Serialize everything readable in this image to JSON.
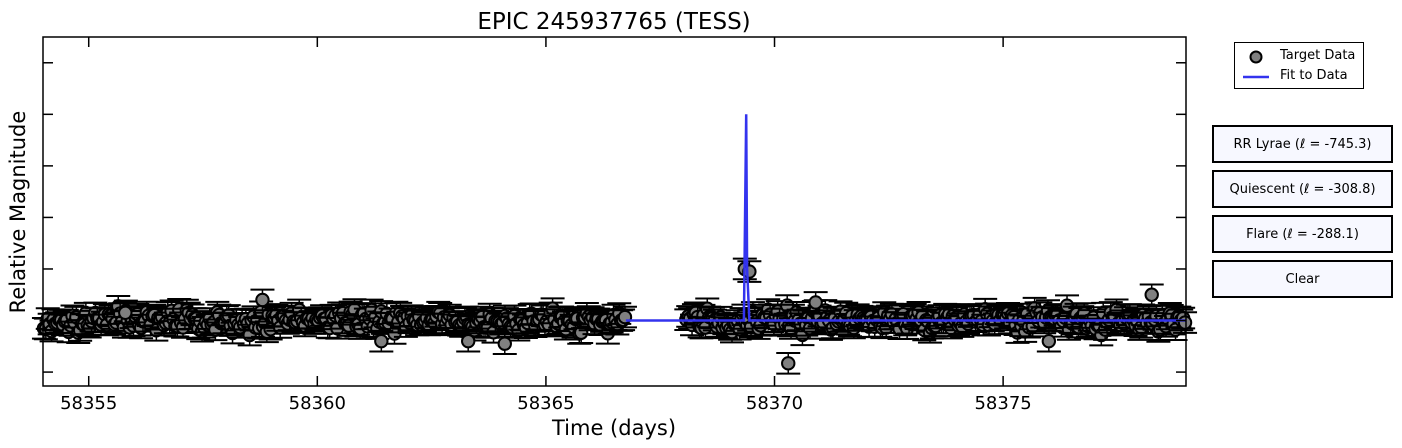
{
  "chart_data": {
    "type": "scatter",
    "title": "EPIC 245937765 (TESS)",
    "xlabel": "Time (days)",
    "ylabel": "Relative Magnitude",
    "xlim": [
      58354,
      58379
    ],
    "x_ticks": [
      58355,
      58360,
      58365,
      58370,
      58375
    ],
    "x_tick_labels": [
      "58355",
      "58360",
      "58365",
      "58370",
      "58375"
    ],
    "ylim": [
      -1.27,
      5.5
    ],
    "y_tick_labels_shown": false,
    "grid": false,
    "legend_placement": "outside-top-right",
    "series": [
      {
        "name": "Target Data",
        "kind": "points_with_errorbars",
        "marker_color": "#808080",
        "edge_color": "#000000",
        "error": 0.2,
        "segments": [
          {
            "x_start": 58354.0,
            "x_end": 58366.75,
            "baseline": 0.0,
            "scatter": 0.15
          },
          {
            "x_start": 58368.05,
            "x_end": 58379.0,
            "baseline": 0.0,
            "scatter": 0.15
          }
        ],
        "notable_points": [
          {
            "x": 58369.35,
            "y": 1.0
          },
          {
            "x": 58369.45,
            "y": 0.95
          },
          {
            "x": 58370.3,
            "y": -0.83
          },
          {
            "x": 58378.25,
            "y": 0.5
          },
          {
            "x": 58355.8,
            "y": 0.15
          },
          {
            "x": 58358.8,
            "y": 0.4
          },
          {
            "x": 58364.1,
            "y": -0.45
          },
          {
            "x": 58363.3,
            "y": -0.4
          },
          {
            "x": 58361.4,
            "y": -0.4
          },
          {
            "x": 58376.0,
            "y": -0.4
          },
          {
            "x": 58370.9,
            "y": 0.35
          }
        ]
      },
      {
        "name": "Fit to Data",
        "kind": "line",
        "color": "#3333ee",
        "points": [
          [
            58366.75,
            0.0
          ],
          [
            58369.33,
            0.0
          ],
          [
            58369.38,
            4.0
          ],
          [
            58369.4,
            1.0
          ],
          [
            58369.45,
            0.0
          ],
          [
            58379.0,
            0.0
          ]
        ]
      }
    ]
  },
  "buttons": {
    "rr_lyrae": "RR Lyrae (ℓ = -745.3)",
    "quiescent": "Quiescent (ℓ = -308.8)",
    "flare": "Flare (ℓ = -288.1)",
    "clear": "Clear"
  }
}
